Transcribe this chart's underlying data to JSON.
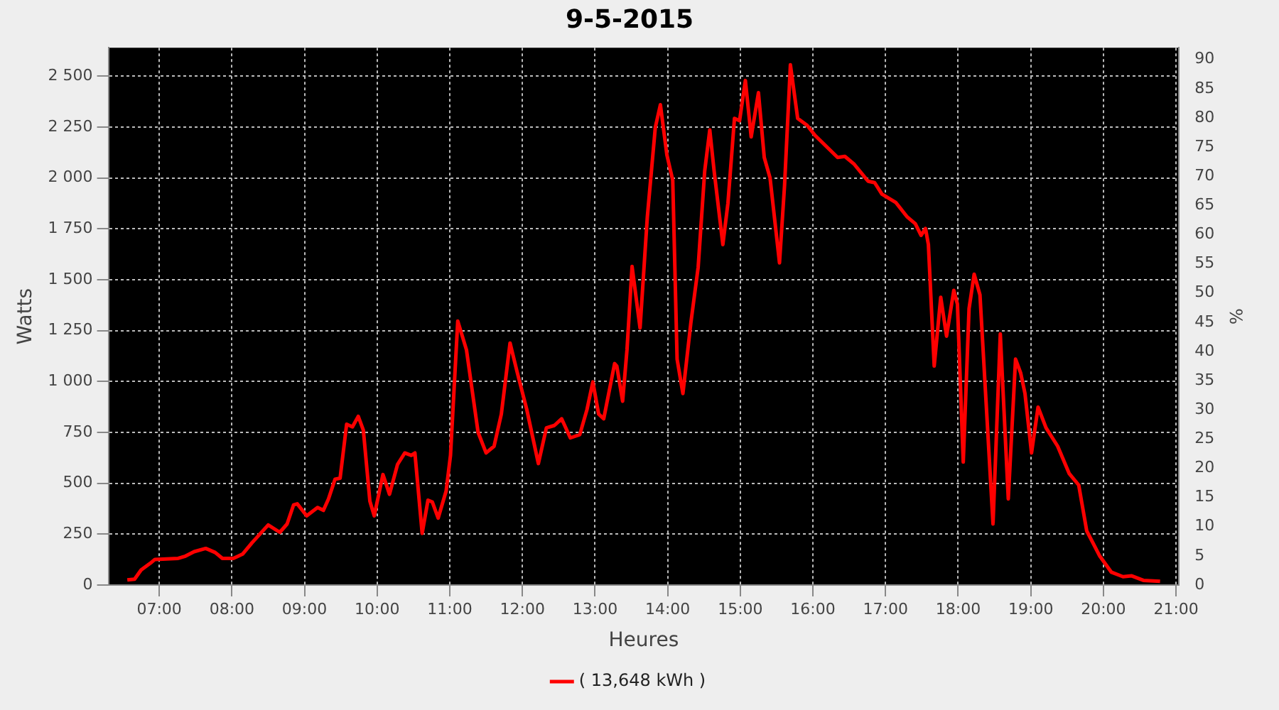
{
  "chart_data": {
    "type": "line",
    "title": "9-5-2015",
    "xlabel": "Heures",
    "ylabel": "Watts",
    "y2label": "%",
    "xlim": [
      6.3,
      21.04
    ],
    "xticks": [
      {
        "value": 7,
        "label": "07:00"
      },
      {
        "value": 8,
        "label": "08:00"
      },
      {
        "value": 9,
        "label": "09:00"
      },
      {
        "value": 10,
        "label": "10:00"
      },
      {
        "value": 11,
        "label": "11:00"
      },
      {
        "value": 12,
        "label": "12:00"
      },
      {
        "value": 13,
        "label": "13:00"
      },
      {
        "value": 14,
        "label": "14:00"
      },
      {
        "value": 15,
        "label": "15:00"
      },
      {
        "value": 16,
        "label": "16:00"
      },
      {
        "value": 17,
        "label": "17:00"
      },
      {
        "value": 18,
        "label": "18:00"
      },
      {
        "value": 19,
        "label": "19:00"
      },
      {
        "value": 20,
        "label": "20:00"
      },
      {
        "value": 21,
        "label": "21:00"
      }
    ],
    "ylim": [
      0,
      2640
    ],
    "yticks": [
      0,
      250,
      500,
      750,
      {
        "value": 1000,
        "label": "1 000"
      },
      {
        "value": 1250,
        "label": "1 250"
      },
      {
        "value": 1500,
        "label": "1 500"
      },
      {
        "value": 1750,
        "label": "1 750"
      },
      {
        "value": 2000,
        "label": "2 000"
      },
      {
        "value": 2250,
        "label": "2 250"
      },
      {
        "value": 2500,
        "label": "2 500"
      }
    ],
    "y2lim": [
      0,
      92
    ],
    "y2ticks": [
      0,
      5,
      10,
      15,
      20,
      25,
      30,
      35,
      40,
      45,
      50,
      55,
      60,
      65,
      70,
      75,
      80,
      85,
      90
    ],
    "grid": true,
    "legend": "bottom",
    "marker": "none",
    "line_style": "solid",
    "series": [
      {
        "name": "( 13,648 kWh )",
        "color": "#ff0000",
        "x": [
          6.56,
          6.66,
          6.75,
          6.88,
          6.94,
          7.26,
          7.36,
          7.48,
          7.64,
          7.77,
          7.87,
          8.02,
          8.15,
          8.28,
          8.5,
          8.66,
          8.76,
          8.85,
          8.9,
          9.03,
          9.18,
          9.26,
          9.33,
          9.42,
          9.49,
          9.58,
          9.66,
          9.74,
          9.81,
          9.9,
          9.96,
          10.08,
          10.17,
          10.28,
          10.38,
          10.47,
          10.52,
          10.62,
          10.7,
          10.76,
          10.84,
          10.95,
          11.01,
          11.11,
          11.23,
          11.39,
          11.5,
          11.61,
          11.71,
          11.83,
          11.93,
          12.06,
          12.22,
          12.33,
          12.44,
          12.54,
          12.66,
          12.79,
          12.89,
          12.97,
          13.05,
          13.12,
          13.27,
          13.3,
          13.38,
          13.44,
          13.51,
          13.62,
          13.72,
          13.83,
          13.9,
          13.99,
          14.07,
          14.13,
          14.21,
          14.32,
          14.42,
          14.51,
          14.58,
          14.64,
          14.76,
          14.83,
          14.92,
          14.99,
          15.07,
          15.15,
          15.25,
          15.33,
          15.41,
          15.54,
          15.61,
          15.69,
          15.79,
          15.92,
          16.03,
          16.21,
          16.34,
          16.44,
          16.57,
          16.76,
          16.85,
          16.95,
          17.14,
          17.3,
          17.41,
          17.49,
          17.55,
          17.59,
          17.67,
          17.76,
          17.84,
          17.94,
          17.99,
          18.07,
          18.15,
          18.22,
          18.3,
          18.48,
          18.58,
          18.69,
          18.79,
          18.86,
          18.92,
          19.01,
          19.1,
          19.21,
          19.37,
          19.53,
          19.66,
          19.77,
          19.95,
          20.11,
          20.27,
          20.39,
          20.55,
          20.78
        ],
        "values": [
          25,
          29,
          74,
          108,
          126,
          131,
          142,
          164,
          180,
          160,
          131,
          131,
          153,
          209,
          295,
          259,
          300,
          394,
          399,
          340,
          381,
          367,
          423,
          520,
          525,
          790,
          777,
          829,
          761,
          412,
          340,
          543,
          446,
          592,
          649,
          637,
          649,
          254,
          417,
          408,
          329,
          462,
          637,
          1297,
          1155,
          750,
          649,
          682,
          840,
          1189,
          1043,
          863,
          597,
          772,
          784,
          817,
          723,
          739,
          863,
          998,
          840,
          817,
          1088,
          1076,
          903,
          1155,
          1565,
          1263,
          1808,
          2248,
          2360,
          2112,
          1989,
          1110,
          941,
          1290,
          1561,
          2034,
          2236,
          2034,
          1673,
          1876,
          2293,
          2281,
          2479,
          2202,
          2419,
          2101,
          2000,
          1583,
          1966,
          2556,
          2293,
          2259,
          2209,
          2146,
          2101,
          2106,
          2067,
          1984,
          1977,
          1921,
          1880,
          1808,
          1775,
          1718,
          1752,
          1673,
          1076,
          1414,
          1223,
          1448,
          1380,
          604,
          1358,
          1527,
          1426,
          300,
          1234,
          423,
          1110,
          1043,
          941,
          649,
          874,
          772,
          682,
          547,
          491,
          266,
          142,
          63,
          41,
          45,
          23,
          18
        ]
      }
    ]
  }
}
